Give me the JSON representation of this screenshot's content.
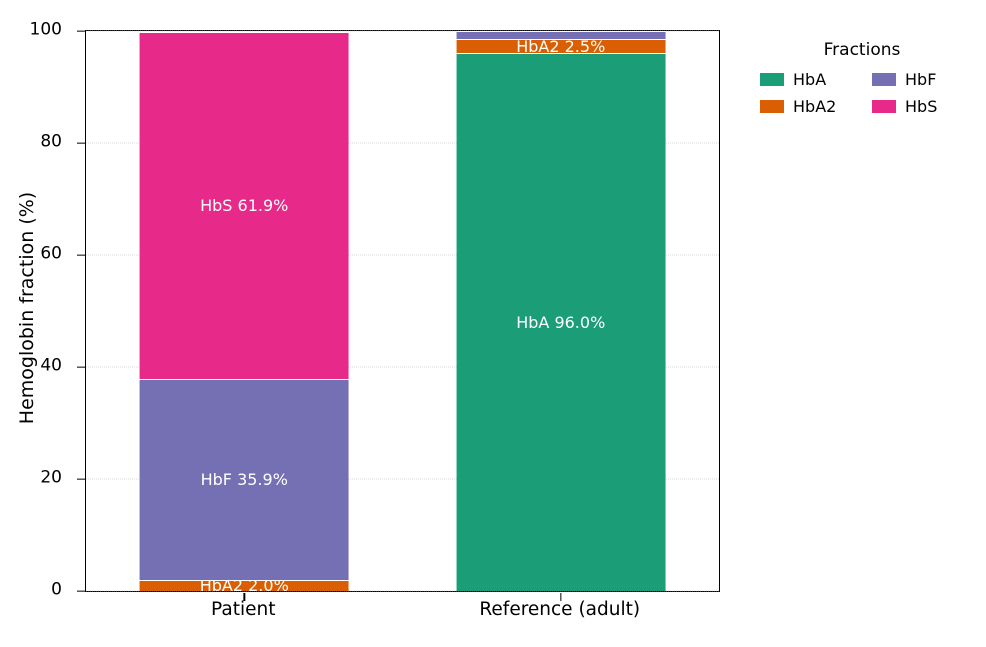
{
  "figure": {
    "y_axis_label": "Hemoglobin fraction (%)",
    "legend": {
      "title": "Fractions",
      "entries": [
        "HbA",
        "HbF",
        "HbA2",
        "HbS"
      ]
    }
  },
  "chart_data": {
    "type": "bar",
    "stacked": true,
    "title": "",
    "xlabel": "",
    "ylabel": "Hemoglobin fraction (%)",
    "ylim": [
      0,
      100
    ],
    "yticks": [
      0,
      20,
      40,
      60,
      80,
      100
    ],
    "grid": "dotted horizontal gridlines at y ticks",
    "categories": [
      "Patient",
      "Reference (adult)"
    ],
    "bar_centers_fraction": [
      0.25,
      0.75
    ],
    "bar_width_fraction": 0.33,
    "series": [
      {
        "name": "HbA",
        "color": "#1b9e77",
        "values": [
          0,
          96.0
        ],
        "labels": [
          null,
          "HbA 96.0%"
        ]
      },
      {
        "name": "HbA2",
        "color": "#d95f02",
        "values": [
          2.0,
          2.5
        ],
        "labels": [
          "HbA2 2.0%",
          "HbA2 2.5%"
        ]
      },
      {
        "name": "HbF",
        "color": "#7570b3",
        "values": [
          35.9,
          1.5
        ],
        "labels": [
          "HbF 35.9%",
          null
        ]
      },
      {
        "name": "HbS",
        "color": "#e7298a",
        "values": [
          61.9,
          0
        ],
        "labels": [
          "HbS 61.9%",
          null
        ]
      }
    ],
    "legend_title": "Fractions",
    "legend_order": [
      "HbA",
      "HbF",
      "HbA2",
      "HbS"
    ],
    "legend_position": "outside upper right, 2 columns"
  }
}
